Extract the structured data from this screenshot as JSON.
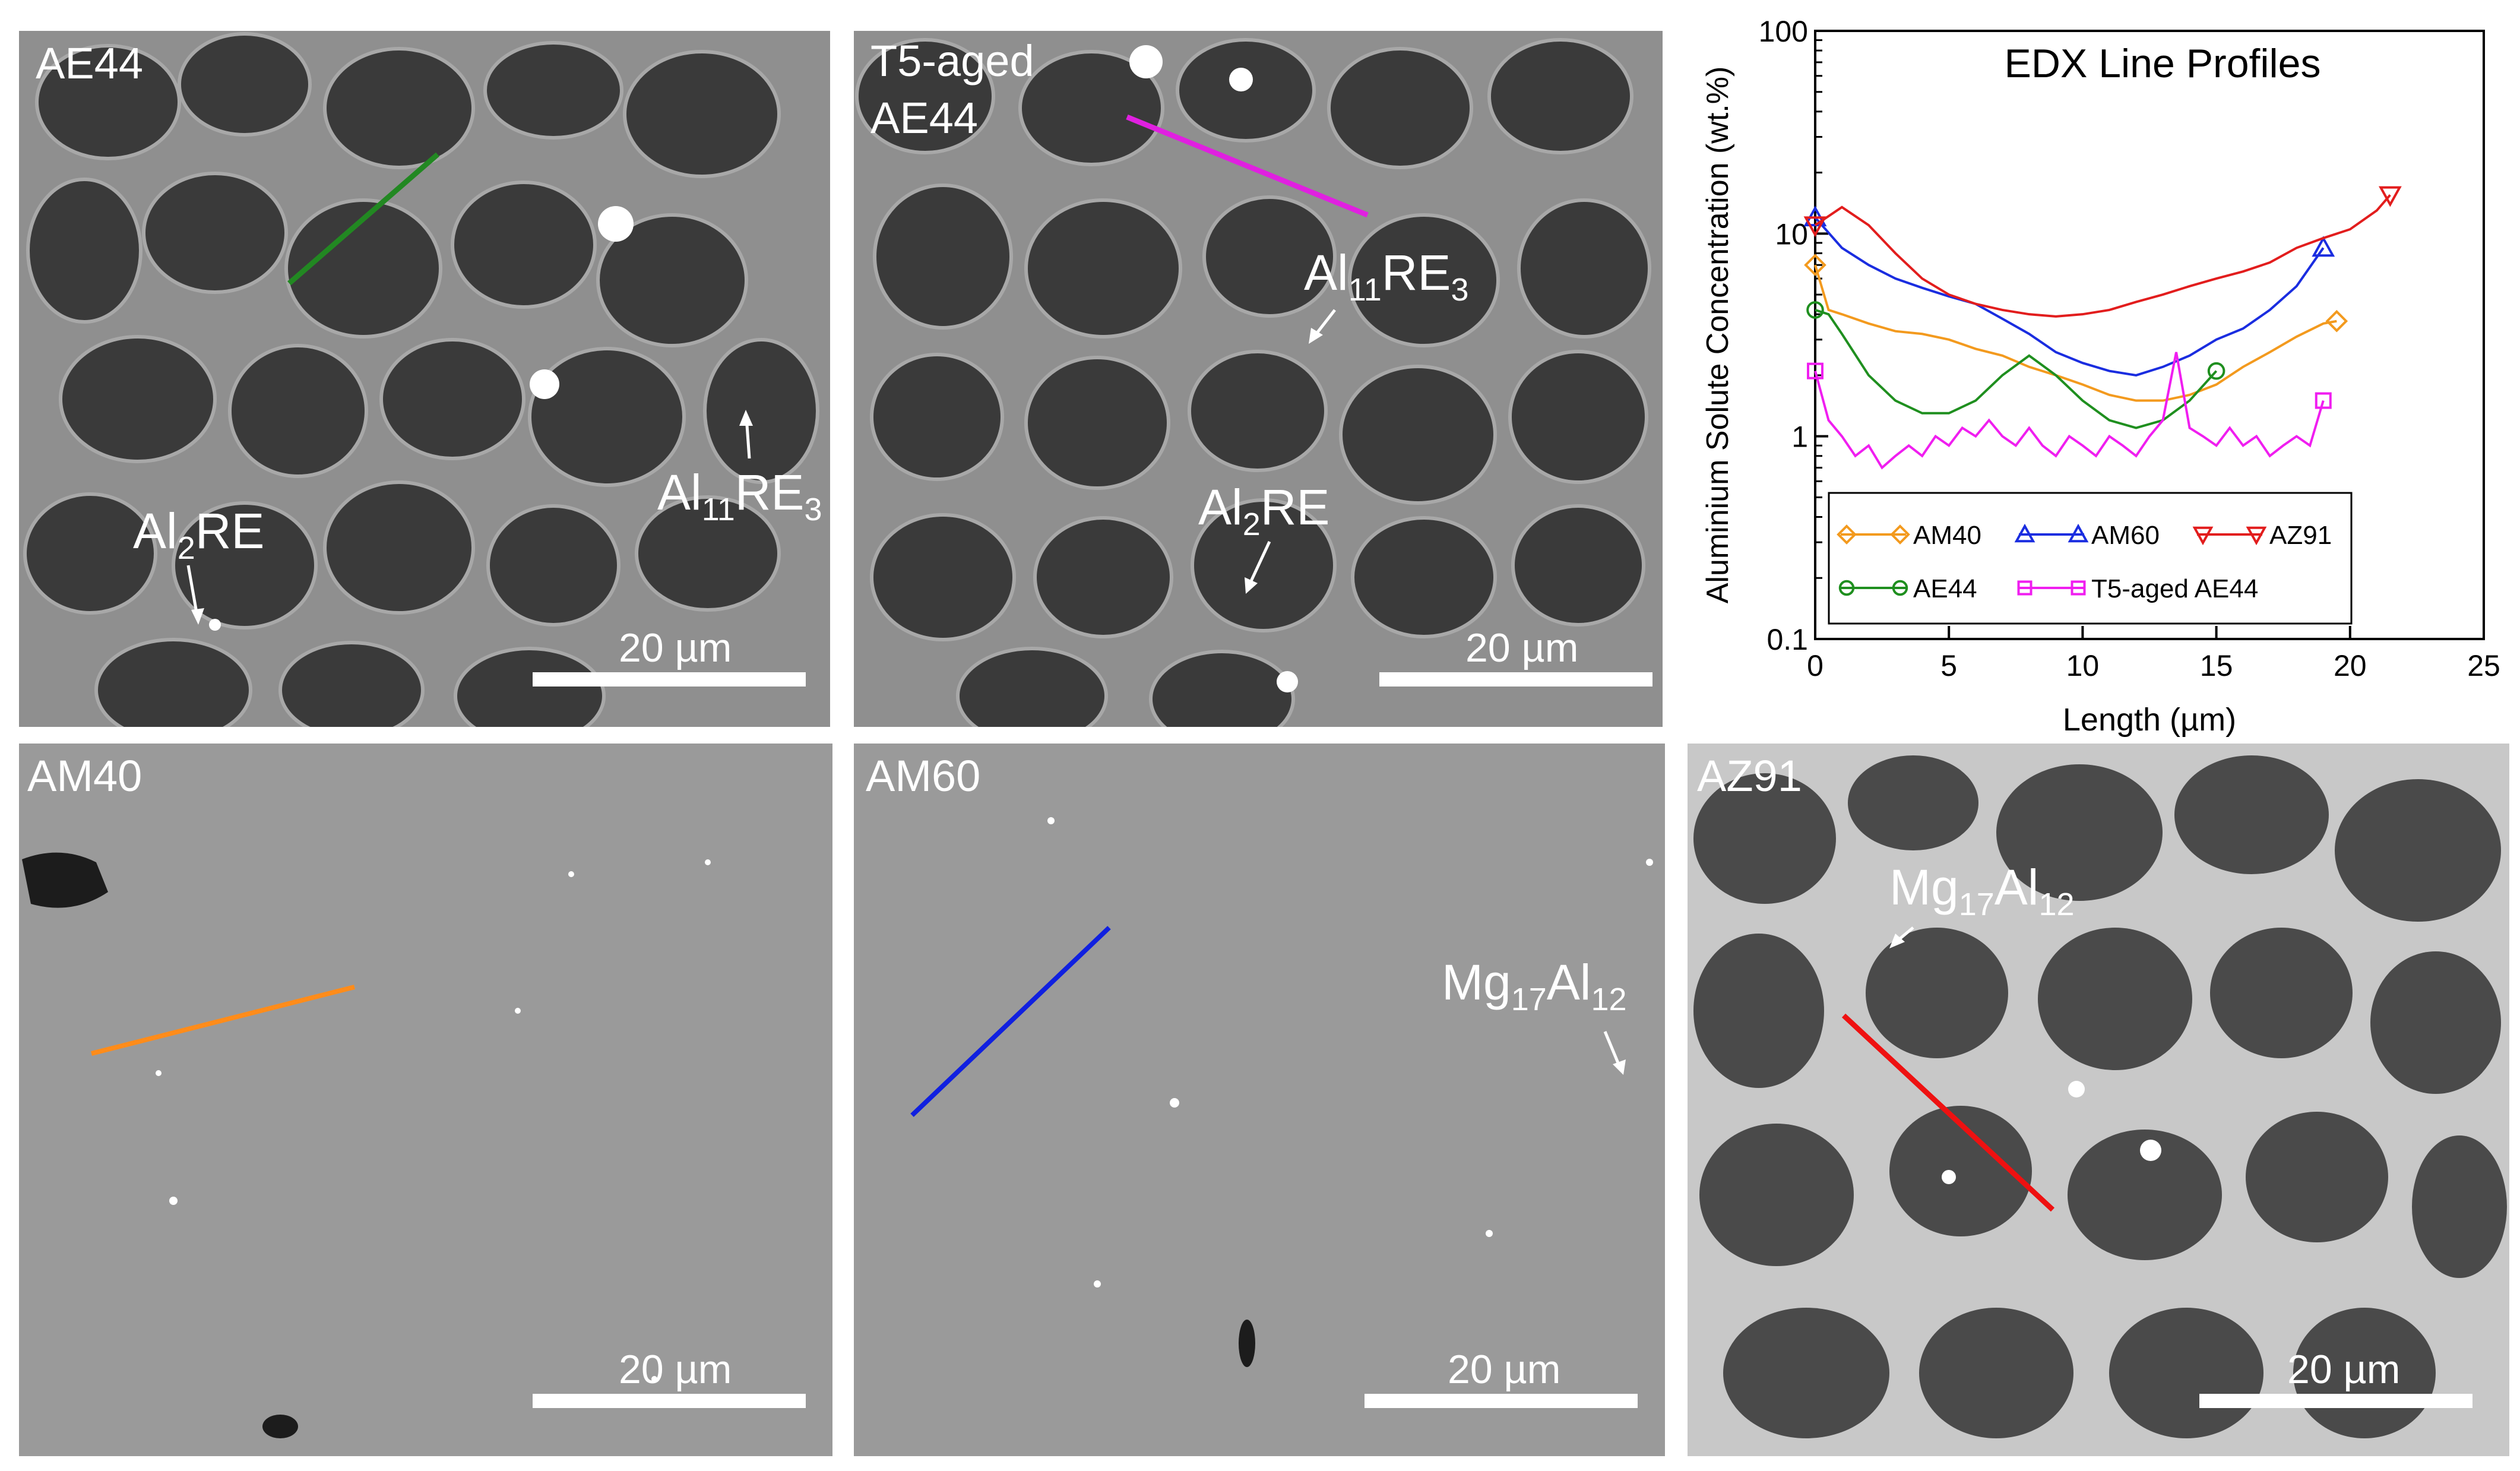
{
  "panels": [
    {
      "id": "ae44",
      "label": "AE44",
      "scalebar": "20 µm",
      "line_color": "#228822",
      "annotations": [
        {
          "main": "Al",
          "sub1": "2",
          "mid": "RE",
          "sub2": ""
        },
        {
          "main": "Al",
          "sub1": "11",
          "mid": "RE",
          "sub2": "3"
        }
      ]
    },
    {
      "id": "t5",
      "label_line1": "T5-aged",
      "label_line2": "AE44",
      "scalebar": "20 µm",
      "line_color": "#e020e0",
      "annotations": [
        {
          "main": "Al",
          "sub1": "11",
          "mid": "RE",
          "sub2": "3"
        },
        {
          "main": "Al",
          "sub1": "2",
          "mid": "RE",
          "sub2": ""
        }
      ]
    },
    {
      "id": "am40",
      "label": "AM40",
      "scalebar": "20 µm",
      "line_color": "#ff8c1a"
    },
    {
      "id": "am60",
      "label": "AM60",
      "scalebar": "20 µm",
      "line_color": "#1020e0",
      "annotations": [
        {
          "main": "Mg",
          "sub1": "17",
          "mid": "Al",
          "sub2": "12"
        }
      ]
    },
    {
      "id": "az91",
      "label": "AZ91",
      "scalebar": "20 µm",
      "line_color": "#ee1111",
      "annotations": [
        {
          "main": "Mg",
          "sub1": "17",
          "mid": "Al",
          "sub2": "12"
        }
      ]
    }
  ],
  "chart_data": {
    "type": "line",
    "title": "EDX Line Profiles",
    "xlabel": "Length (µm)",
    "ylabel": "Aluminium Solute Concentration (wt.%)",
    "xlim": [
      0,
      25
    ],
    "ylim": [
      0.1,
      100
    ],
    "yscale": "log",
    "xticks": [
      "0",
      "5",
      "10",
      "15",
      "20",
      "25"
    ],
    "yticks": [
      "0.1",
      "1",
      "10",
      "100"
    ],
    "legend_position": "bottom-center",
    "series": [
      {
        "name": "AM40",
        "color": "#f39a1e",
        "marker": "diamond",
        "x": [
          0,
          0.5,
          1,
          2,
          3,
          4,
          5,
          6,
          7,
          8,
          9,
          10,
          11,
          12,
          13,
          14,
          15,
          16,
          17,
          18,
          19,
          19.5
        ],
        "y": [
          7,
          4.2,
          4.0,
          3.6,
          3.3,
          3.2,
          3.0,
          2.7,
          2.5,
          2.2,
          2.0,
          1.8,
          1.6,
          1.5,
          1.5,
          1.6,
          1.8,
          2.2,
          2.6,
          3.1,
          3.6,
          3.7
        ]
      },
      {
        "name": "AM60",
        "color": "#1a2de0",
        "marker": "triangle-up",
        "x": [
          0,
          1,
          2,
          3,
          4,
          5,
          6,
          7,
          8,
          9,
          10,
          11,
          12,
          13,
          14,
          15,
          16,
          17,
          18,
          19
        ],
        "y": [
          12,
          8.5,
          7.0,
          6.0,
          5.4,
          4.9,
          4.5,
          3.8,
          3.2,
          2.6,
          2.3,
          2.1,
          2.0,
          2.2,
          2.5,
          3.0,
          3.4,
          4.2,
          5.5,
          8.5
        ]
      },
      {
        "name": "AZ91",
        "color": "#e21d1d",
        "marker": "triangle-down",
        "x": [
          0,
          1,
          2,
          3,
          4,
          5,
          6,
          7,
          8,
          9,
          10,
          11,
          12,
          13,
          14,
          15,
          16,
          17,
          18,
          19,
          20,
          21,
          21.5
        ],
        "y": [
          11,
          13.5,
          11,
          8,
          6,
          5.0,
          4.5,
          4.2,
          4.0,
          3.9,
          4.0,
          4.2,
          4.6,
          5.0,
          5.5,
          6.0,
          6.5,
          7.2,
          8.5,
          9.5,
          10.5,
          13,
          15.5
        ]
      },
      {
        "name": "AE44",
        "color": "#1f8f1f",
        "marker": "circle",
        "x": [
          0,
          0.5,
          1,
          2,
          3,
          4,
          5,
          6,
          7,
          8,
          9,
          10,
          11,
          12,
          13,
          14,
          15
        ],
        "y": [
          4.2,
          4.0,
          3.2,
          2.0,
          1.5,
          1.3,
          1.3,
          1.5,
          2.0,
          2.5,
          2.0,
          1.5,
          1.2,
          1.1,
          1.2,
          1.5,
          2.1
        ]
      },
      {
        "name": "T5-aged AE44",
        "color": "#f01ef0",
        "marker": "square",
        "x": [
          0,
          0.5,
          1,
          1.5,
          2,
          2.5,
          3,
          3.5,
          4,
          4.5,
          5,
          5.5,
          6,
          6.5,
          7,
          7.5,
          8,
          8.5,
          9,
          9.5,
          10,
          10.5,
          11,
          11.5,
          12,
          12.5,
          13,
          13.5,
          14,
          14.5,
          15,
          15.5,
          16,
          16.5,
          17,
          17.5,
          18,
          18.5,
          19
        ],
        "y": [
          2.1,
          1.2,
          1.0,
          0.8,
          0.9,
          0.7,
          0.8,
          0.9,
          0.8,
          1.0,
          0.9,
          1.1,
          1.0,
          1.2,
          1.0,
          0.9,
          1.1,
          0.9,
          0.8,
          1.0,
          0.9,
          0.8,
          1.0,
          0.9,
          0.8,
          1.0,
          1.2,
          2.6,
          1.1,
          1.0,
          0.9,
          1.1,
          0.9,
          1.0,
          0.8,
          0.9,
          1.0,
          0.9,
          1.5
        ]
      }
    ]
  }
}
